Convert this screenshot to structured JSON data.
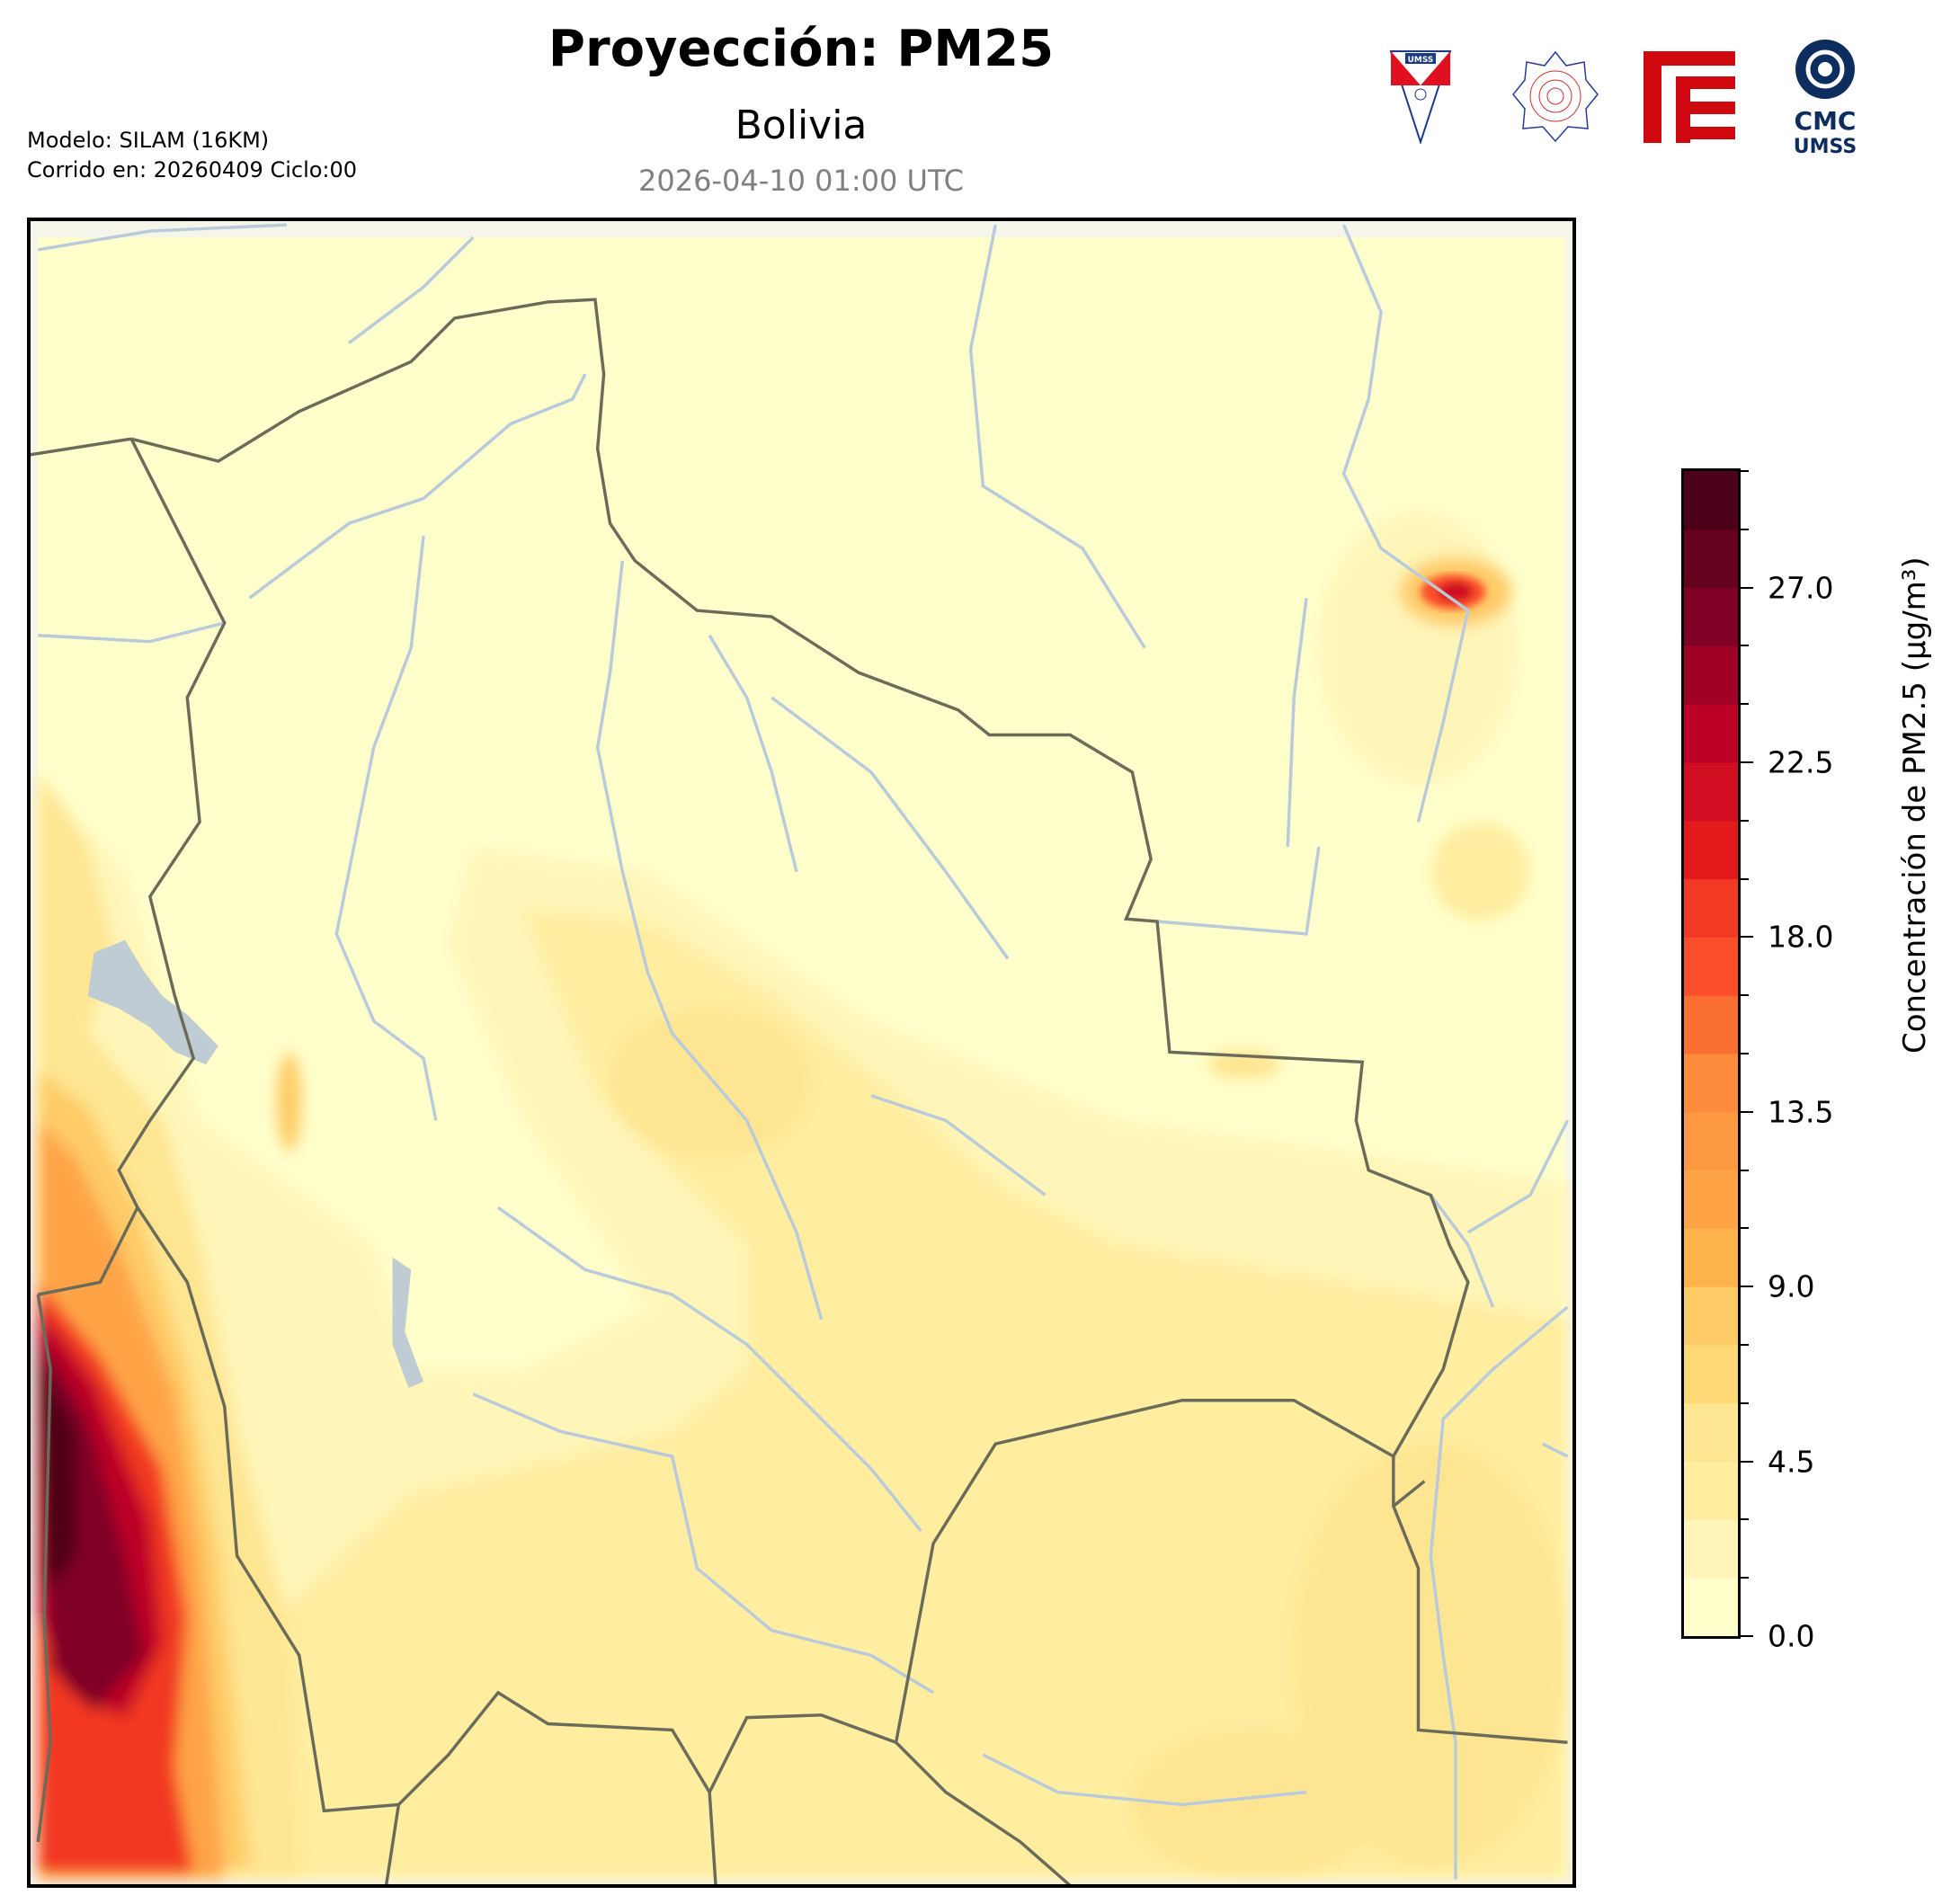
{
  "header": {
    "title": "Proyección: PM25",
    "subtitle": "Bolivia",
    "datetime": "2026-04-10 01:00 UTC",
    "model_line": "Modelo: SILAM (16KM)",
    "run_line": "Corrido en: 20260409 Ciclo:00"
  },
  "logos": {
    "umss_shield": "UMSS",
    "physics_department": "DEPARTAMENTO DE FISICA",
    "fcyt": "FCyT",
    "cmc": {
      "line1": "CMC",
      "line2": "UMSS"
    }
  },
  "map": {
    "region": "Bolivia",
    "variable": "PM2.5",
    "features": [
      "country-borders",
      "rivers",
      "lakes",
      "pm25-contours"
    ]
  },
  "colorbar": {
    "label": "Concentración de PM2.5 (µg/m³)",
    "min": 0,
    "max": 30,
    "step": 1.5,
    "tick_labels": [
      "0.0",
      "4.5",
      "9.0",
      "13.5",
      "18.0",
      "22.5",
      "27.0"
    ],
    "tick_values": [
      0,
      4.5,
      9,
      13.5,
      18,
      22.5,
      27
    ],
    "colormap": [
      "#ffffcc",
      "#fff5b8",
      "#ffeda0",
      "#fee591",
      "#fed976",
      "#fecb66",
      "#feb24c",
      "#fea446",
      "#fd9a41",
      "#fd8d3c",
      "#fc6f33",
      "#fc4e2a",
      "#f23924",
      "#e31a1c",
      "#d00d21",
      "#bd0026",
      "#a00026",
      "#800026",
      "#66001f",
      "#4d0019"
    ]
  }
}
